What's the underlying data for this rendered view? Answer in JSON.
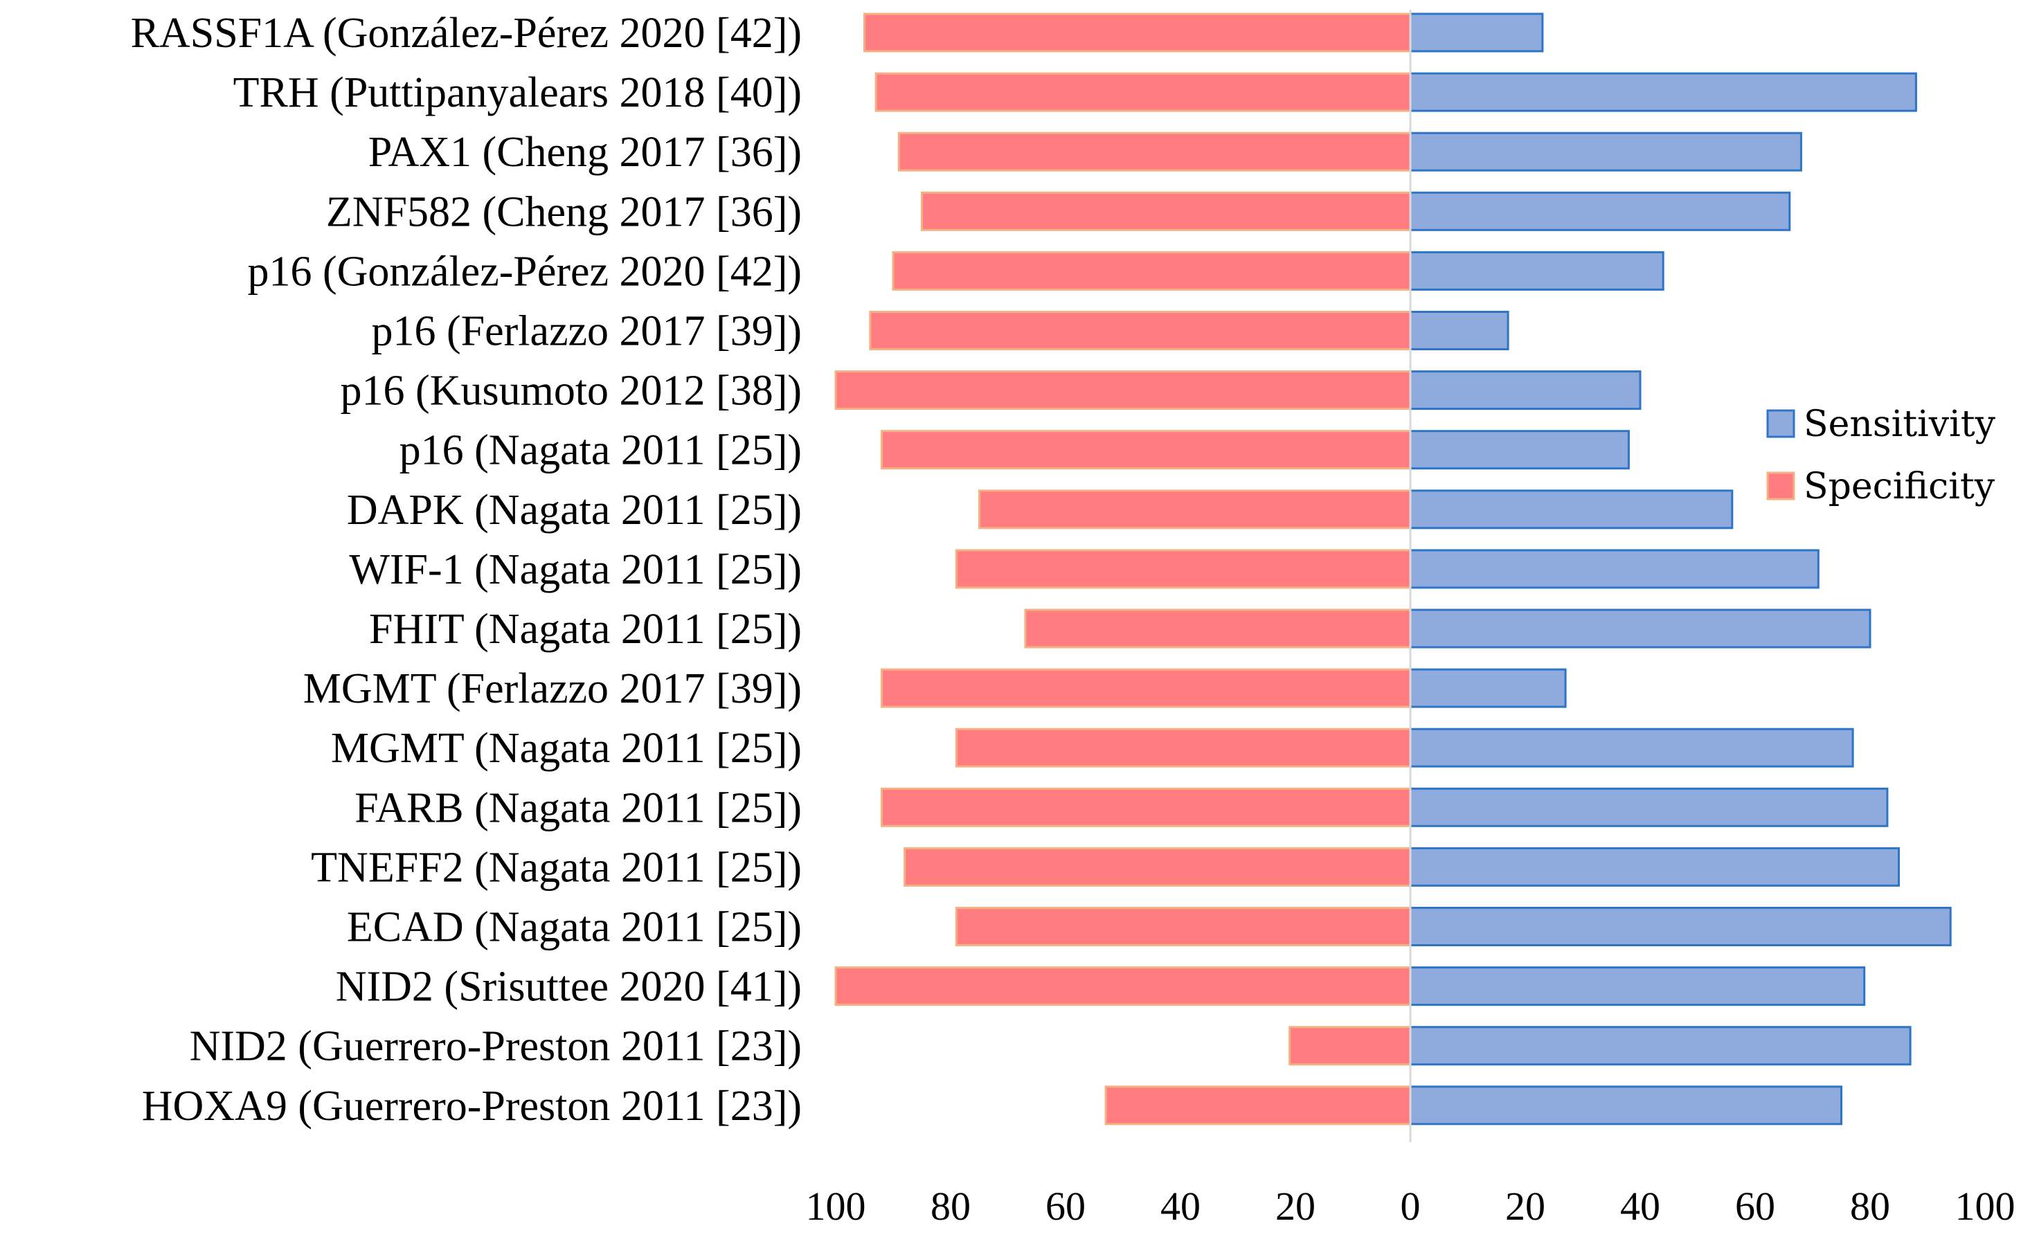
{
  "chart_data": {
    "type": "bar",
    "orientation": "horizontal-diverging",
    "title": "",
    "xlabel": "",
    "ylabel": "",
    "xlim": [
      0,
      100
    ],
    "ticks": [
      "100",
      "80",
      "60",
      "40",
      "20",
      "0",
      "20",
      "40",
      "60",
      "80",
      "100"
    ],
    "categories": [
      "RASSF1A (González-Pérez 2020 [42])",
      "TRH (Puttipanyalears 2018 [40])",
      "PAX1 (Cheng 2017 [36])",
      "ZNF582 (Cheng 2017 [36])",
      "p16 (González-Pérez 2020 [42])",
      "p16 (Ferlazzo 2017 [39])",
      "p16 (Kusumoto 2012 [38])",
      "p16 (Nagata 2011 [25])",
      "DAPK (Nagata 2011 [25])",
      "WIF-1 (Nagata 2011 [25])",
      "FHIT (Nagata 2011 [25])",
      "MGMT (Ferlazzo 2017 [39])",
      "MGMT (Nagata 2011 [25])",
      "FARB (Nagata 2011 [25])",
      "TNEFF2 (Nagata 2011 [25])",
      "ECAD (Nagata 2011 [25])",
      "NID2 (Srisuttee 2020 [41])",
      "NID2 (Guerrero-Preston 2011 [23])",
      "HOXA9 (Guerrero-Preston 2011 [23])"
    ],
    "series": [
      {
        "name": "Sensitivity",
        "color": "#8FAADC",
        "edge_color": "#2E75C6",
        "side": "right",
        "values": [
          23,
          88,
          68,
          66,
          44,
          17,
          40,
          38,
          56,
          71,
          80,
          27,
          77,
          83,
          85,
          94,
          79,
          87,
          75
        ]
      },
      {
        "name": "Specificity",
        "color": "#FF7C80",
        "edge_color": "#F4B183",
        "side": "left",
        "values": [
          95,
          93,
          89,
          85,
          90,
          94,
          100,
          92,
          75,
          79,
          67,
          92,
          79,
          92,
          88,
          79,
          100,
          21,
          53
        ]
      }
    ],
    "legend": {
      "position": "right",
      "entries": [
        "Sensitivity",
        "Specificity"
      ]
    }
  }
}
